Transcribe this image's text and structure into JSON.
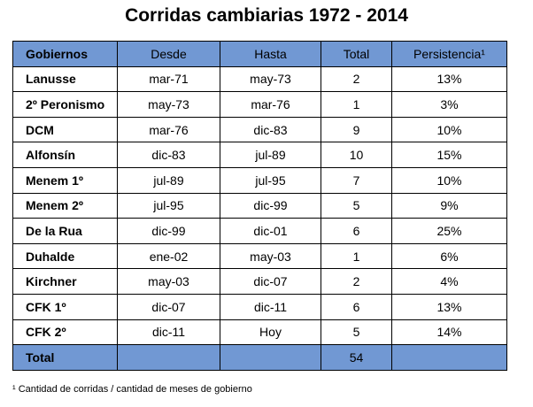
{
  "title": "Corridas cambiarias 1972 - 2014",
  "table": {
    "header": [
      "Gobiernos",
      "Desde",
      "Hasta",
      "Total",
      "Persistencia¹"
    ],
    "rows": [
      [
        "Lanusse",
        "mar-71",
        "may-73",
        "2",
        "13%"
      ],
      [
        "2º Peronismo",
        "may-73",
        "mar-76",
        "1",
        "3%"
      ],
      [
        "DCM",
        "mar-76",
        "dic-83",
        "9",
        "10%"
      ],
      [
        "Alfonsín",
        "dic-83",
        "jul-89",
        "10",
        "15%"
      ],
      [
        "Menem 1º",
        "jul-89",
        "jul-95",
        "7",
        "10%"
      ],
      [
        "Menem 2º",
        "jul-95",
        "dic-99",
        "5",
        "9%"
      ],
      [
        "De la Rua",
        "dic-99",
        "dic-01",
        "6",
        "25%"
      ],
      [
        "Duhalde",
        "ene-02",
        "may-03",
        "1",
        "6%"
      ],
      [
        "Kirchner",
        "may-03",
        "dic-07",
        "2",
        "4%"
      ],
      [
        "CFK 1º",
        "dic-07",
        "dic-11",
        "6",
        "13%"
      ],
      [
        "CFK 2º",
        "dic-11",
        "Hoy",
        "5",
        "14%"
      ]
    ],
    "total_row": {
      "label": "Total",
      "total": "54"
    }
  },
  "footnote": "¹ Cantidad de corridas / cantidad de meses de gobierno"
}
